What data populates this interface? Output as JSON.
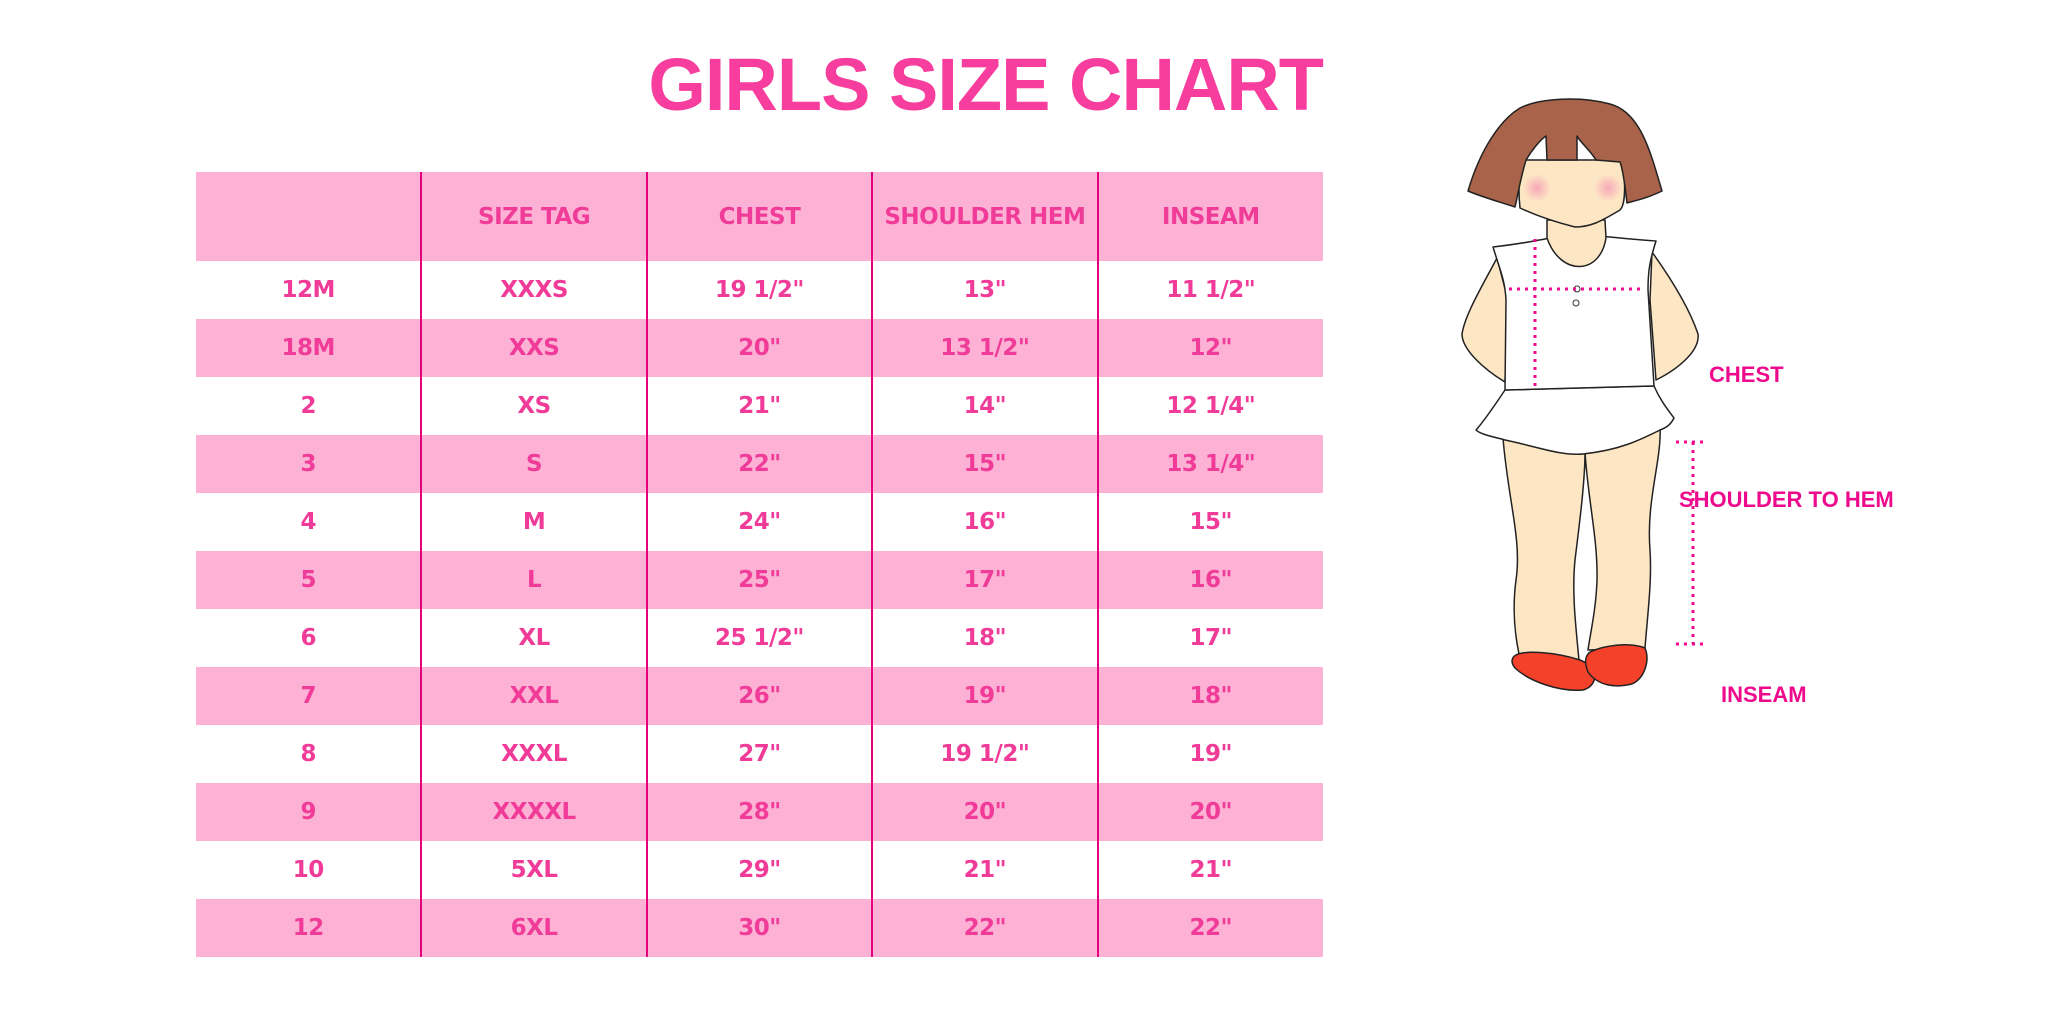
{
  "title": "GIRLS SIZE CHART",
  "chart_data": {
    "type": "table",
    "title": "GIRLS SIZE CHART",
    "columns": [
      "",
      "SIZE TAG",
      "CHEST",
      "SHOULDER HEM",
      "INSEAM"
    ],
    "rows": [
      [
        "12M",
        "XXXS",
        "19 1/2\"",
        "13\"",
        "11 1/2\""
      ],
      [
        "18M",
        "XXS",
        "20\"",
        "13 1/2\"",
        "12\""
      ],
      [
        "2",
        "XS",
        "21\"",
        "14\"",
        "12 1/4\""
      ],
      [
        "3",
        "S",
        "22\"",
        "15\"",
        "13 1/4\""
      ],
      [
        "4",
        "M",
        "24\"",
        "16\"",
        "15\""
      ],
      [
        "5",
        "L",
        "25\"",
        "17\"",
        "16\""
      ],
      [
        "6",
        "XL",
        "25 1/2\"",
        "18\"",
        "17\""
      ],
      [
        "7",
        "XXL",
        "26\"",
        "19\"",
        "18\""
      ],
      [
        "8",
        "XXXL",
        "27\"",
        "19 1/2\"",
        "19\""
      ],
      [
        "9",
        "XXXXL",
        "28\"",
        "20\"",
        "20\""
      ],
      [
        "10",
        "5XL",
        "29\"",
        "21\"",
        "21\""
      ],
      [
        "12",
        "6XL",
        "30\"",
        "22\"",
        "22\""
      ]
    ]
  },
  "figure": {
    "labels": {
      "chest": "CHEST",
      "shoulder": "SHOULDER TO HEM",
      "inseam": "INSEAM"
    }
  },
  "colors": {
    "accent": "#f73d9e",
    "row_pink": "#fdb1d5",
    "divider": "#e4007c",
    "measure": "#ee0a8c"
  }
}
